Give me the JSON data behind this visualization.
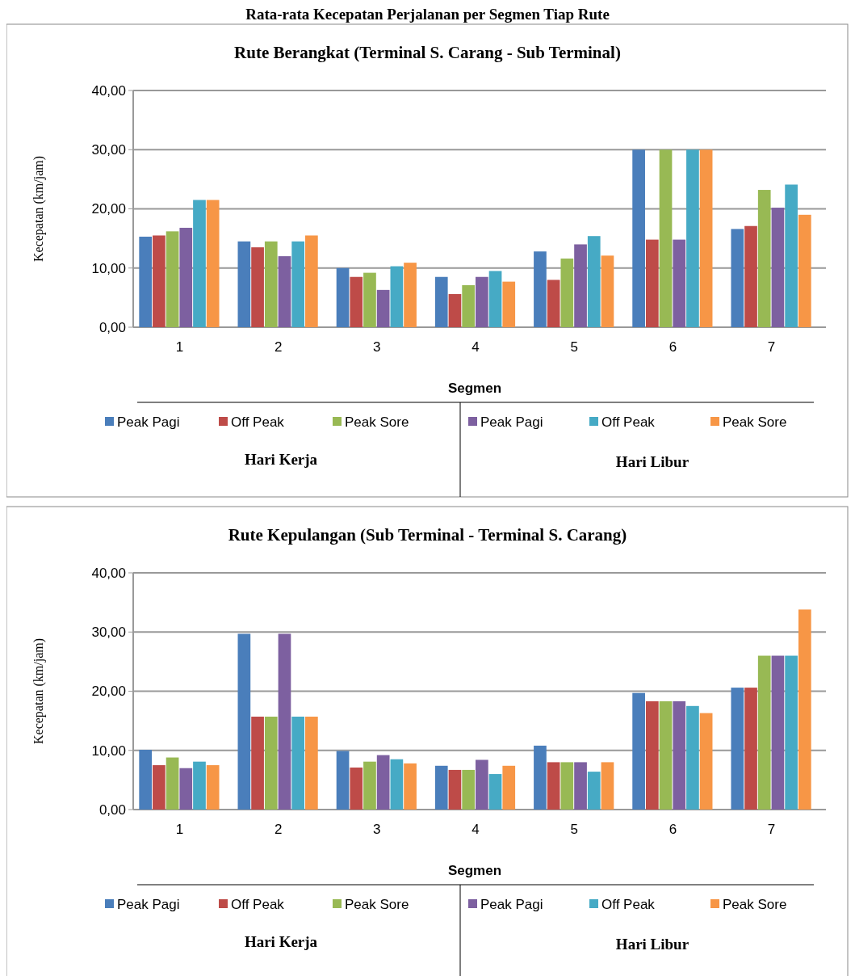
{
  "chart_data": [
    {
      "type": "bar",
      "title": "Rute Berangkat (Terminal S. Carang - Sub Terminal)",
      "xlabel": "Segmen",
      "ylabel": "Kecepatan (km/jam)",
      "categories": [
        "1",
        "2",
        "3",
        "4",
        "5",
        "6",
        "7"
      ],
      "ylim": [
        0,
        40
      ],
      "yticks": [
        {
          "value": 0,
          "label": "0,00"
        },
        {
          "value": 10,
          "label": "10,00"
        },
        {
          "value": 20,
          "label": "20,00"
        },
        {
          "value": 30,
          "label": "30,00"
        },
        {
          "value": 40,
          "label": "40,00"
        }
      ],
      "grid": "y",
      "legend": "bottom",
      "annotations": [
        "Rata-rata Kecepatan Perjalanan per Segmen Tiap Rute",
        "Hari Kerja",
        "Hari Libur"
      ],
      "series": [
        {
          "name": "Peak Pagi",
          "color": "#4a7ebb",
          "values": [
            15.3,
            14.5,
            10,
            8.5,
            12.8,
            30,
            16.6
          ]
        },
        {
          "name": "Off Peak",
          "color": "#be4b48",
          "values": [
            15.5,
            13.5,
            8.5,
            5.6,
            8,
            14.8,
            17.1
          ]
        },
        {
          "name": "Peak Sore",
          "color": "#98b954",
          "values": [
            16.2,
            14.5,
            9.2,
            7.1,
            11.6,
            30,
            23.2
          ]
        },
        {
          "name": "Peak Pagi",
          "color": "#7d60a0",
          "values": [
            16.8,
            12,
            6.3,
            8.5,
            14,
            14.8,
            20.2
          ]
        },
        {
          "name": "Off Peak",
          "color": "#46aac5",
          "values": [
            21.5,
            14.5,
            10.3,
            9.5,
            15.4,
            30,
            24.1
          ]
        },
        {
          "name": "Peak Sore",
          "color": "#f79646",
          "values": [
            21.5,
            15.5,
            10.9,
            7.7,
            12.1,
            30,
            19
          ]
        }
      ]
    },
    {
      "type": "bar",
      "title": "Rute Kepulangan (Sub Terminal - Terminal S. Carang)",
      "xlabel": "Segmen",
      "ylabel": "Kecepatan (km/jam)",
      "categories": [
        "1",
        "2",
        "3",
        "4",
        "5",
        "6",
        "7"
      ],
      "ylim": [
        0,
        40
      ],
      "yticks": [
        {
          "value": 0,
          "label": "0,00"
        },
        {
          "value": 10,
          "label": "10,00"
        },
        {
          "value": 20,
          "label": "20,00"
        },
        {
          "value": 30,
          "label": "30,00"
        },
        {
          "value": 40,
          "label": "40,00"
        }
      ],
      "grid": "y",
      "legend": "bottom",
      "annotations": [
        "Hari Kerja",
        "Hari Libur"
      ],
      "series": [
        {
          "name": "Peak Pagi",
          "color": "#4a7ebb",
          "values": [
            10.1,
            29.7,
            9.9,
            7.4,
            10.8,
            19.7,
            20.6
          ]
        },
        {
          "name": "Off Peak",
          "color": "#be4b48",
          "values": [
            7.5,
            15.7,
            7.1,
            6.7,
            8,
            18.3,
            20.6
          ]
        },
        {
          "name": "Peak Sore",
          "color": "#98b954",
          "values": [
            8.8,
            15.7,
            8.1,
            6.7,
            8,
            18.3,
            26
          ]
        },
        {
          "name": "Peak Pagi",
          "color": "#7d60a0",
          "values": [
            7,
            29.7,
            9.2,
            8.4,
            8,
            18.3,
            26
          ]
        },
        {
          "name": "Off Peak",
          "color": "#46aac5",
          "values": [
            8.1,
            15.7,
            8.5,
            6,
            6.4,
            17.5,
            26
          ]
        },
        {
          "name": "Peak Sore",
          "color": "#f79646",
          "values": [
            7.5,
            15.7,
            7.8,
            7.4,
            8,
            16.3,
            33.8
          ]
        }
      ]
    }
  ]
}
